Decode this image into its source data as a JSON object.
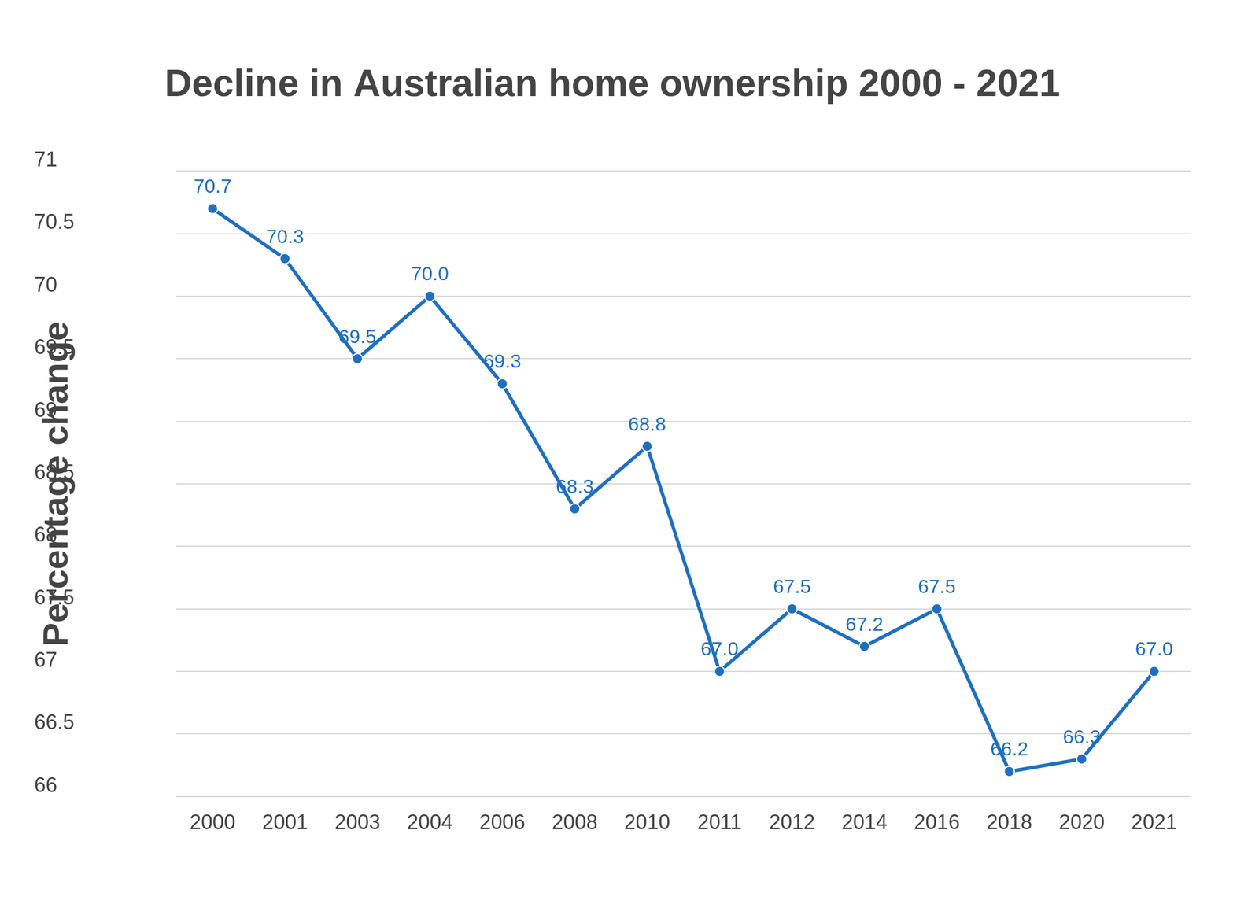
{
  "chart_data": {
    "type": "line",
    "title": "Decline in Australian home ownership 2000 - 2021",
    "y_label": "Percentage change",
    "categories": [
      "2000",
      "2001",
      "2003",
      "2004",
      "2006",
      "2008",
      "2010",
      "2011",
      "2012",
      "2014",
      "2016",
      "2018",
      "2020",
      "2021"
    ],
    "values": [
      70.7,
      70.3,
      69.5,
      70.0,
      69.3,
      68.3,
      68.8,
      67.0,
      67.5,
      67.2,
      67.5,
      66.2,
      66.3,
      67.0
    ],
    "value_labels": [
      "70.7",
      "70.3",
      "69.5",
      "70.0",
      "69.3",
      "68.3",
      "68.8",
      "67.0",
      "67.5",
      "67.2",
      "67.5",
      "66.2",
      "66.3",
      "67.0"
    ],
    "color": "#1f6fbf",
    "ylim": [
      66,
      71
    ],
    "yticks": [
      66,
      66.5,
      67,
      67.5,
      68,
      68.5,
      69,
      69.5,
      70,
      70.5,
      71
    ],
    "grid": true,
    "data_labels": true,
    "marker": "circle"
  }
}
